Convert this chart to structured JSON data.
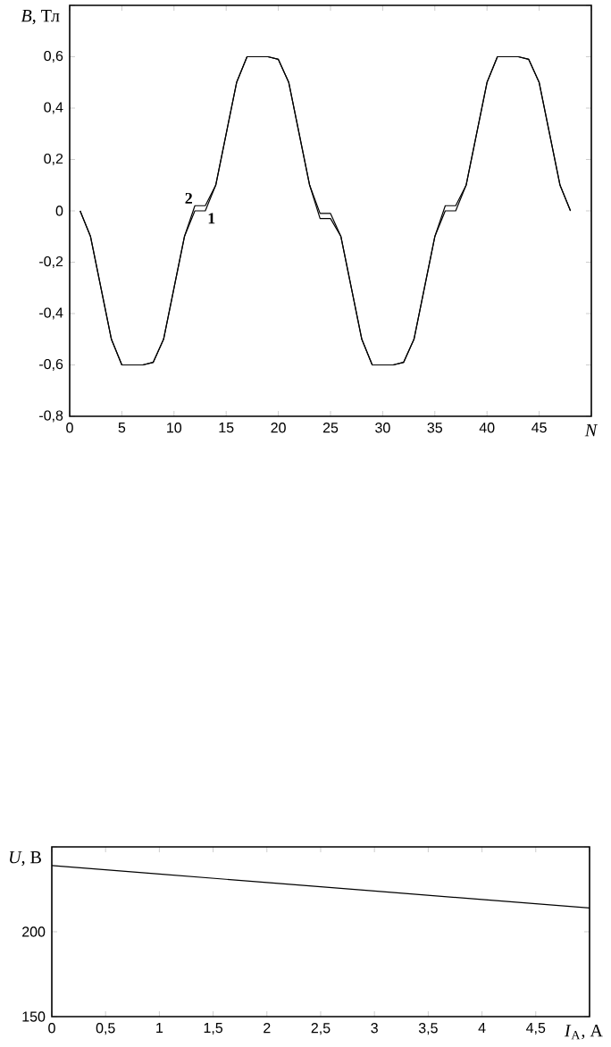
{
  "chart_data": [
    {
      "type": "line",
      "xlabel": "*N*",
      "ylabel": "*B*, Тл",
      "x": [
        1,
        2,
        3,
        4,
        5,
        6,
        7,
        8,
        9,
        10,
        11,
        12,
        13,
        14,
        15,
        16,
        17,
        18,
        19,
        20,
        21,
        22,
        23,
        24,
        25,
        26,
        27,
        28,
        29,
        30,
        31,
        32,
        33,
        34,
        35,
        36,
        37,
        38,
        39,
        40,
        41,
        42,
        43,
        44,
        45,
        46,
        47,
        48
      ],
      "series": [
        {
          "name": "1",
          "color": "#000000",
          "values": [
            0,
            -0.1,
            -0.3,
            -0.5,
            -0.6,
            -0.6,
            -0.6,
            -0.59,
            -0.5,
            -0.3,
            -0.1,
            0,
            0,
            0.1,
            0.3,
            0.5,
            0.6,
            0.6,
            0.6,
            0.59,
            0.5,
            0.3,
            0.1,
            -0.03,
            -0.03,
            -0.1,
            -0.3,
            -0.5,
            -0.6,
            -0.6,
            -0.6,
            -0.59,
            -0.5,
            -0.3,
            -0.1,
            0,
            0,
            0.1,
            0.3,
            0.5,
            0.6,
            0.6,
            0.6,
            0.59,
            0.5,
            0.3,
            0.1,
            0
          ]
        },
        {
          "name": "2",
          "color": "#000000",
          "values": [
            0,
            -0.1,
            -0.3,
            -0.5,
            -0.6,
            -0.6,
            -0.6,
            -0.59,
            -0.5,
            -0.3,
            -0.1,
            0.02,
            0.02,
            0.1,
            0.3,
            0.5,
            0.6,
            0.6,
            0.6,
            0.59,
            0.5,
            0.3,
            0.1,
            -0.01,
            -0.01,
            -0.1,
            -0.3,
            -0.5,
            -0.6,
            -0.6,
            -0.6,
            -0.59,
            -0.5,
            -0.3,
            -0.1,
            0.02,
            0.02,
            0.1,
            0.3,
            0.5,
            0.6,
            0.6,
            0.6,
            0.59,
            0.5,
            0.3,
            0.1,
            0
          ]
        }
      ],
      "xlim": [
        0,
        50
      ],
      "ylim": [
        -0.8,
        0.8
      ],
      "xticks": [
        0,
        5,
        10,
        15,
        20,
        25,
        30,
        35,
        40,
        45,
        {
          "value": 50,
          "label": null
        }
      ],
      "yticks": [
        {
          "value": -0.8,
          "label": "-0,8"
        },
        {
          "value": -0.6,
          "label": "-0,6"
        },
        {
          "value": -0.4,
          "label": "-0,4"
        },
        {
          "value": -0.2,
          "label": "-0,2"
        },
        0,
        {
          "value": 0.2,
          "label": "0,2"
        },
        {
          "value": 0.4,
          "label": "0,4"
        },
        {
          "value": 0.6,
          "label": "0,6"
        },
        {
          "value": 0.8,
          "label": null
        }
      ],
      "grid": false
    },
    {
      "type": "line",
      "xlabel": "*I*$_{А}$, А",
      "ylabel": "*U*, В",
      "x": [
        0,
        1,
        2,
        3,
        4,
        5
      ],
      "series": [
        {
          "color": "#000000",
          "values": [
            239,
            234,
            229,
            224,
            219,
            214
          ]
        }
      ],
      "xlim": [
        0,
        5
      ],
      "ylim": [
        150,
        250
      ],
      "xticks": [
        0,
        {
          "value": 0.5,
          "label": "0,5"
        },
        1,
        {
          "value": 1.5,
          "label": "1,5"
        },
        2,
        {
          "value": 2.5,
          "label": "2,5"
        },
        3,
        {
          "value": 3.5,
          "label": "3,5"
        },
        4,
        {
          "value": 4.5,
          "label": "4,5"
        },
        {
          "value": 5,
          "label": null
        }
      ],
      "yticks": [
        150,
        200,
        {
          "value": 250,
          "label": null
        }
      ],
      "grid": false
    }
  ]
}
